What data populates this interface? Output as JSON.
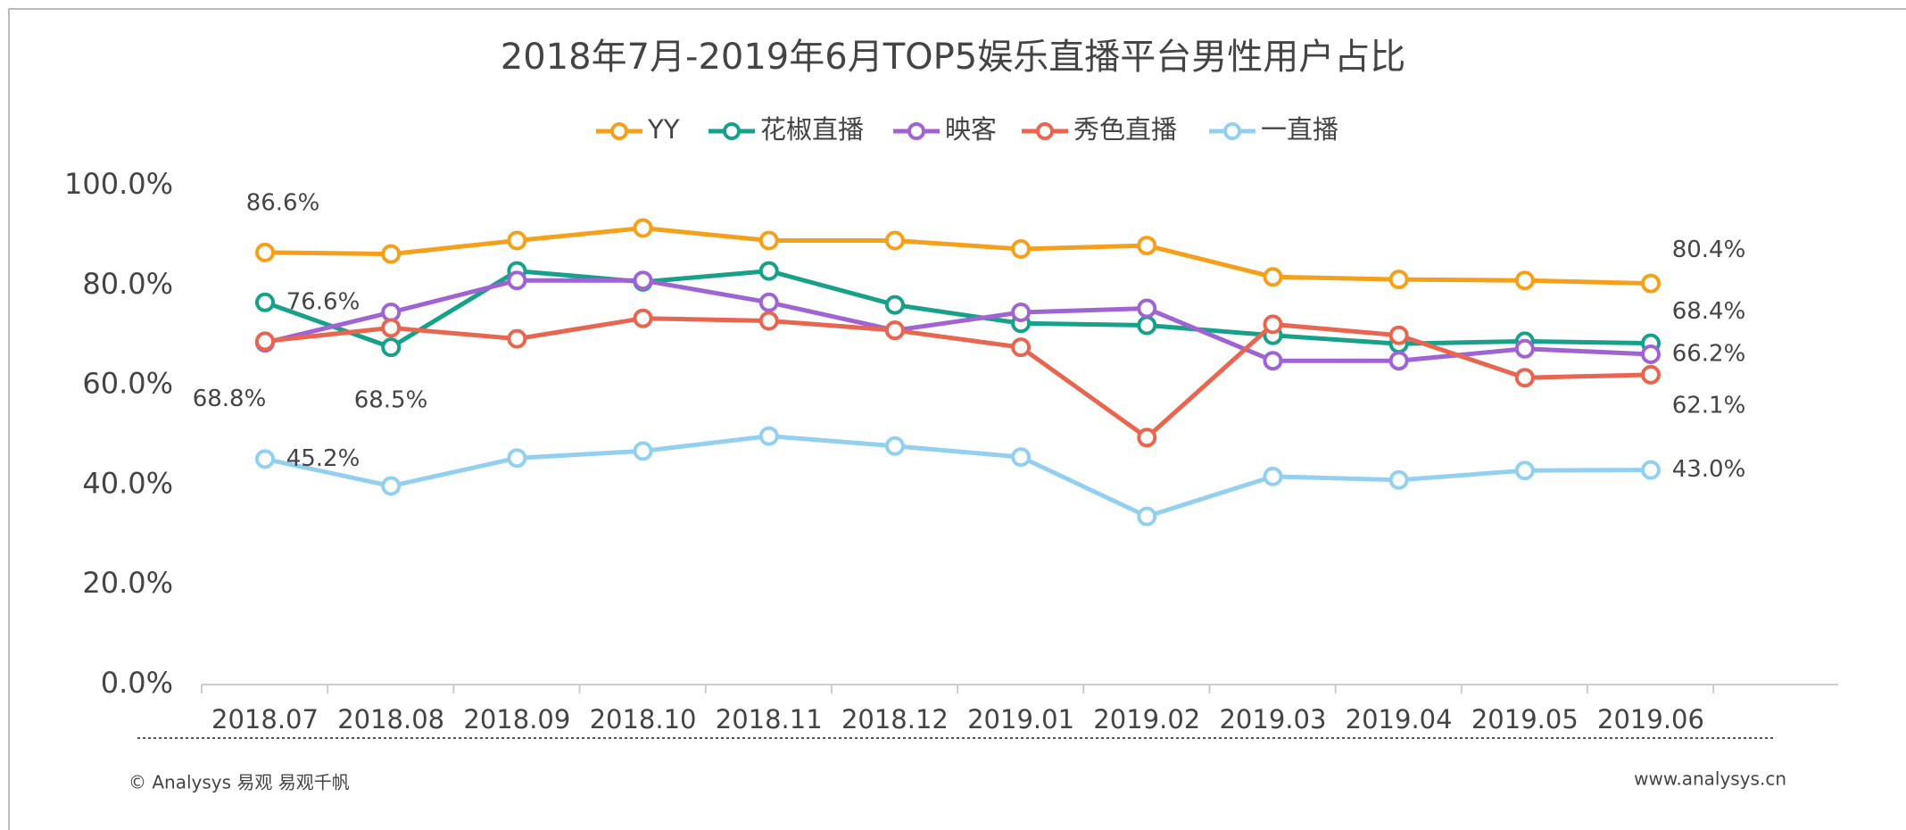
{
  "chart_data": {
    "type": "line",
    "title": "2018年7月-2019年6月TOP5娱乐直播平台男性用户占比",
    "categories": [
      "2018.07",
      "2018.08",
      "2018.09",
      "2018.10",
      "2018.11",
      "2018.12",
      "2019.01",
      "2019.02",
      "2019.03",
      "2019.04",
      "2019.05",
      "2019.06"
    ],
    "ylim": [
      0,
      100
    ],
    "yticks": [
      {
        "value": 0,
        "label": "0.0%"
      },
      {
        "value": 20,
        "label": "20.0%"
      },
      {
        "value": 40,
        "label": "40.0%"
      },
      {
        "value": 60,
        "label": "60.0%"
      },
      {
        "value": 80,
        "label": "80.0%"
      },
      {
        "value": 100,
        "label": "100.0%"
      }
    ],
    "legend": "top",
    "series": [
      {
        "name": "YY",
        "color": "#f5a01a",
        "values": [
          86.6,
          86.3,
          89.0,
          91.5,
          89.0,
          89.0,
          87.3,
          88.0,
          81.7,
          81.2,
          81.0,
          80.4
        ],
        "value_labels": [
          "86.6%",
          null,
          null,
          null,
          null,
          null,
          null,
          null,
          null,
          null,
          null,
          "80.4%"
        ]
      },
      {
        "name": "花椒直播",
        "color": "#17a08a",
        "values": [
          76.6,
          67.6,
          82.9,
          80.7,
          82.9,
          76.1,
          72.4,
          72.0,
          70.0,
          68.3,
          68.8,
          68.4
        ],
        "value_labels": [
          "76.6%",
          null,
          null,
          null,
          null,
          null,
          null,
          null,
          null,
          null,
          null,
          "68.4%"
        ]
      },
      {
        "name": "映客",
        "color": "#a064d2",
        "values": [
          68.5,
          74.6,
          81.0,
          81.0,
          76.6,
          71.0,
          74.6,
          75.4,
          64.9,
          64.9,
          67.3,
          66.2
        ],
        "value_labels": [
          "68.5%",
          null,
          null,
          null,
          null,
          null,
          null,
          null,
          null,
          null,
          null,
          "66.2%"
        ]
      },
      {
        "name": "秀色直播",
        "color": "#e8654f",
        "values": [
          68.8,
          71.5,
          69.3,
          73.4,
          72.9,
          71.0,
          67.6,
          49.5,
          72.2,
          70.0,
          61.5,
          62.1
        ],
        "value_labels": [
          "68.8%",
          null,
          null,
          null,
          null,
          null,
          null,
          null,
          null,
          null,
          null,
          "62.1%"
        ]
      },
      {
        "name": "一直播",
        "color": "#93d0ef",
        "values": [
          45.2,
          39.8,
          45.4,
          46.8,
          49.8,
          47.8,
          45.6,
          33.7,
          41.7,
          41.0,
          42.9,
          43.0
        ],
        "value_labels": [
          "45.2%",
          null,
          null,
          null,
          null,
          null,
          null,
          null,
          null,
          null,
          null,
          "43.0%"
        ]
      }
    ]
  },
  "footer": {
    "copyright": "© Analysys 易观 易观千帆",
    "website": "www.analysys.cn"
  }
}
